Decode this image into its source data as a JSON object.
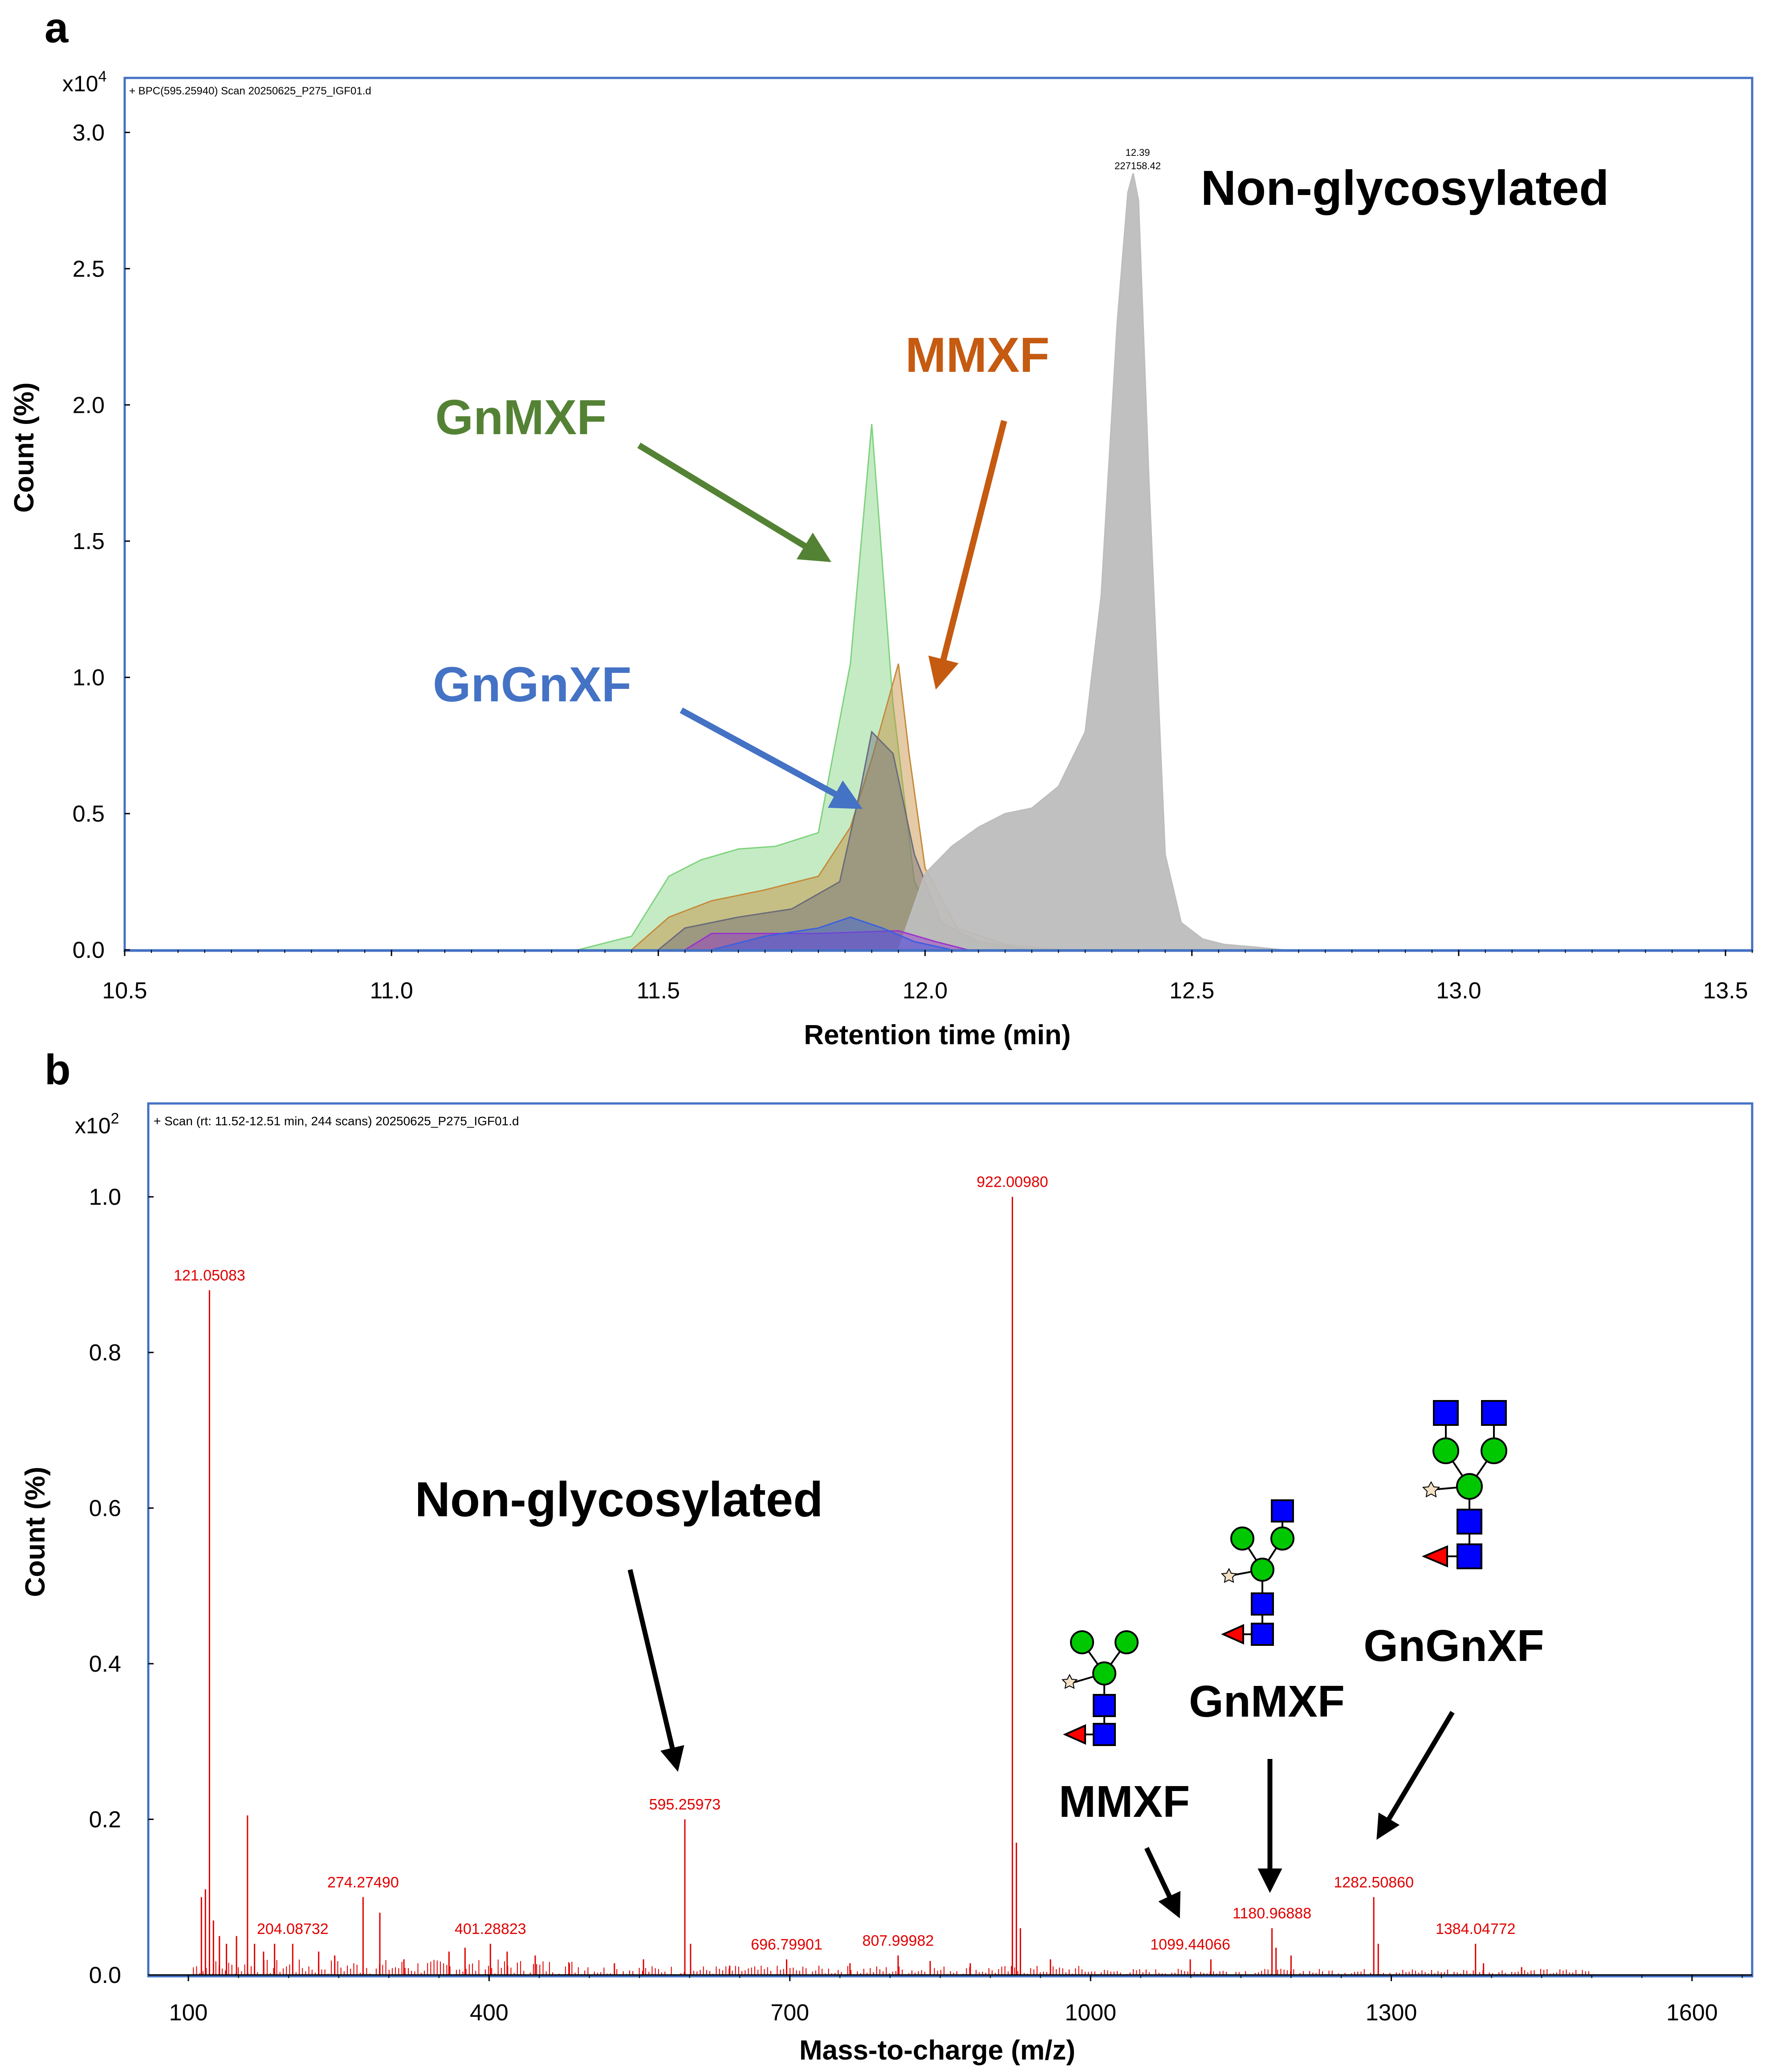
{
  "colors": {
    "frame": "#4472C4",
    "gnmxf": "#548235",
    "mmxf": "#C55A11",
    "gngnxf": "#4472C4",
    "spectrum": "#E00000",
    "gray_peak": "#BDBDBD",
    "gn_square": "#0000FF",
    "man_circle": "#00C800",
    "fuc_triangle": "#FF0000",
    "xyl_star": "#F3E1C6"
  },
  "chart_data": [
    {
      "panel": "a",
      "type": "area",
      "scan_label": "+ BPC(595.25940) Scan 20250625_P275_IGF01.d",
      "y_multiplier_base": "x10",
      "y_multiplier_exp": "4",
      "xlabel": "Retention time (min)",
      "ylabel": "Count (%)",
      "xlim": [
        10.5,
        13.55
      ],
      "ylim": [
        0,
        3.2
      ],
      "xticks": [
        "10.5",
        "11.0",
        "11.5",
        "12.0",
        "12.5",
        "13.0",
        "13.5"
      ],
      "yticks": [
        "0.0",
        "0.5",
        "1.0",
        "1.5",
        "2.0",
        "2.5",
        "3.0"
      ],
      "peak_label_rt": "12.39",
      "peak_label_intensity": "227158.42",
      "series": [
        {
          "name": "GnMXF",
          "color": "#7ED37E",
          "x": [
            11.35,
            11.45,
            11.52,
            11.58,
            11.65,
            11.72,
            11.8,
            11.86,
            11.9,
            11.94,
            11.98,
            12.03,
            12.1,
            12.2
          ],
          "y": [
            0.0,
            0.05,
            0.27,
            0.33,
            0.37,
            0.38,
            0.43,
            1.05,
            1.93,
            0.9,
            0.25,
            0.06,
            0.02,
            0.0
          ]
        },
        {
          "name": "MMXF",
          "color": "#C58A3A",
          "x": [
            11.45,
            11.52,
            11.6,
            11.7,
            11.8,
            11.86,
            11.9,
            11.95,
            11.97,
            12.0,
            12.06,
            12.15,
            12.25
          ],
          "y": [
            0.0,
            0.12,
            0.18,
            0.22,
            0.27,
            0.45,
            0.7,
            1.05,
            0.72,
            0.3,
            0.08,
            0.02,
            0.0
          ]
        },
        {
          "name": "GnGnXF",
          "color": "#6A6A7A",
          "x": [
            11.5,
            11.55,
            11.65,
            11.75,
            11.84,
            11.88,
            11.9,
            11.94,
            11.98,
            12.03,
            12.1,
            12.2
          ],
          "y": [
            0.0,
            0.08,
            0.12,
            0.15,
            0.25,
            0.6,
            0.8,
            0.72,
            0.35,
            0.1,
            0.03,
            0.0
          ]
        },
        {
          "name": "Non-glycosylated",
          "color": "#BDBDBD",
          "x": [
            11.95,
            12.0,
            12.05,
            12.1,
            12.15,
            12.2,
            12.25,
            12.3,
            12.33,
            12.36,
            12.38,
            12.39,
            12.4,
            12.42,
            12.45,
            12.48,
            12.52,
            12.56,
            12.62,
            12.67
          ],
          "y": [
            0.0,
            0.28,
            0.38,
            0.45,
            0.5,
            0.52,
            0.6,
            0.8,
            1.3,
            2.3,
            2.78,
            2.85,
            2.75,
            1.7,
            0.35,
            0.1,
            0.04,
            0.02,
            0.01,
            0.0
          ]
        },
        {
          "name": "Purple",
          "color": "#9933CC",
          "x": [
            11.55,
            11.6,
            11.8,
            11.95,
            12.02,
            12.08
          ],
          "y": [
            0.0,
            0.06,
            0.06,
            0.07,
            0.03,
            0.0
          ]
        },
        {
          "name": "Blue",
          "color": "#3A5FE0",
          "x": [
            11.6,
            11.7,
            11.8,
            11.86,
            11.92,
            11.98,
            12.05
          ],
          "y": [
            0.0,
            0.05,
            0.08,
            0.12,
            0.08,
            0.03,
            0.0
          ]
        }
      ],
      "annotations": [
        {
          "label": "GnMXF",
          "color": "#548235"
        },
        {
          "label": "MMXF",
          "color": "#C55A11"
        },
        {
          "label": "GnGnXF",
          "color": "#4472C4"
        },
        {
          "label": "Non-glycosylated",
          "color": "#000000"
        }
      ]
    },
    {
      "panel": "b",
      "type": "bar",
      "scan_label": "+ Scan (rt: 11.52-12.51 min, 244 scans) 20250625_P275_IGF01.d",
      "y_multiplier_base": "x10",
      "y_multiplier_exp": "2",
      "xlabel": "Mass-to-charge (m/z)",
      "ylabel": "Count (%)",
      "xlim": [
        60,
        1660
      ],
      "ylim": [
        0,
        1.12
      ],
      "xticks": [
        "100",
        "400",
        "700",
        "1000",
        "1300",
        "1600"
      ],
      "yticks": [
        "0.0",
        "0.2",
        "0.4",
        "0.6",
        "0.8",
        "1.0"
      ],
      "labeled_peaks": [
        {
          "mz": 121.05083,
          "label": "121.05083",
          "intensity": 0.88
        },
        {
          "mz": 204.08732,
          "label": "204.08732",
          "intensity": 0.04
        },
        {
          "mz": 274.2749,
          "label": "274.27490",
          "intensity": 0.1
        },
        {
          "mz": 401.28823,
          "label": "401.28823",
          "intensity": 0.04
        },
        {
          "mz": 595.25973,
          "label": "595.25973",
          "intensity": 0.2
        },
        {
          "mz": 696.79901,
          "label": "696.79901",
          "intensity": 0.02
        },
        {
          "mz": 807.99982,
          "label": "807.99982",
          "intensity": 0.025
        },
        {
          "mz": 922.0098,
          "label": "922.00980",
          "intensity": 1.0
        },
        {
          "mz": 1099.44066,
          "label": "1099.44066",
          "intensity": 0.02
        },
        {
          "mz": 1180.96888,
          "label": "1180.96888",
          "intensity": 0.06
        },
        {
          "mz": 1282.5086,
          "label": "1282.50860",
          "intensity": 0.1
        },
        {
          "mz": 1384.04772,
          "label": "1384.04772",
          "intensity": 0.04
        }
      ],
      "minor_peaks": [
        {
          "mz": 113,
          "intensity": 0.1
        },
        {
          "mz": 117,
          "intensity": 0.11
        },
        {
          "mz": 125,
          "intensity": 0.07
        },
        {
          "mz": 131,
          "intensity": 0.05
        },
        {
          "mz": 138,
          "intensity": 0.04
        },
        {
          "mz": 148,
          "intensity": 0.05
        },
        {
          "mz": 159,
          "intensity": 0.205
        },
        {
          "mz": 166,
          "intensity": 0.04
        },
        {
          "mz": 175,
          "intensity": 0.03
        },
        {
          "mz": 186,
          "intensity": 0.04
        },
        {
          "mz": 230,
          "intensity": 0.03
        },
        {
          "mz": 246,
          "intensity": 0.025
        },
        {
          "mz": 291,
          "intensity": 0.08
        },
        {
          "mz": 315,
          "intensity": 0.02
        },
        {
          "mz": 360,
          "intensity": 0.03
        },
        {
          "mz": 376,
          "intensity": 0.035
        },
        {
          "mz": 418,
          "intensity": 0.03
        },
        {
          "mz": 446,
          "intensity": 0.025
        },
        {
          "mz": 480,
          "intensity": 0.015
        },
        {
          "mz": 525,
          "intensity": 0.015
        },
        {
          "mz": 554,
          "intensity": 0.02
        },
        {
          "mz": 601,
          "intensity": 0.04
        },
        {
          "mz": 640,
          "intensity": 0.012
        },
        {
          "mz": 760,
          "intensity": 0.015
        },
        {
          "mz": 840,
          "intensity": 0.018
        },
        {
          "mz": 880,
          "intensity": 0.015
        },
        {
          "mz": 926,
          "intensity": 0.17
        },
        {
          "mz": 930,
          "intensity": 0.06
        },
        {
          "mz": 960,
          "intensity": 0.02
        },
        {
          "mz": 1120,
          "intensity": 0.02
        },
        {
          "mz": 1185,
          "intensity": 0.035
        },
        {
          "mz": 1200,
          "intensity": 0.025
        },
        {
          "mz": 1287,
          "intensity": 0.04
        },
        {
          "mz": 1392,
          "intensity": 0.015
        },
        {
          "mz": 1430,
          "intensity": 0.01
        }
      ],
      "annotations": [
        {
          "label": "Non-glycosylated",
          "color": "#000000"
        },
        {
          "label": "MMXF",
          "color": "#000000"
        },
        {
          "label": "GnMXF",
          "color": "#000000"
        },
        {
          "label": "GnGnXF",
          "color": "#000000"
        }
      ]
    }
  ]
}
